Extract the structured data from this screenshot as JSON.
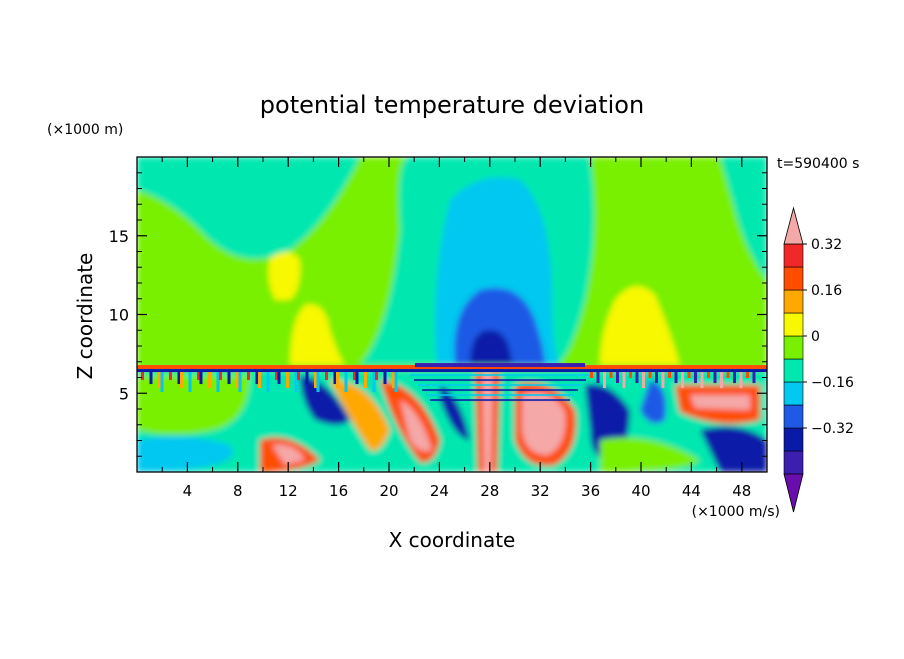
{
  "chart_data": {
    "type": "heatmap",
    "title": "potential temperature deviation",
    "xlabel": "X coordinate",
    "ylabel": "Z coordinate",
    "x_unit_label": "(×1000 m/s)",
    "y_unit_label": "(×1000 m)",
    "time_label": "t=590400 s",
    "xlim": [
      0,
      50
    ],
    "ylim": [
      0,
      20
    ],
    "x_ticks": [
      4,
      8,
      12,
      16,
      20,
      24,
      28,
      32,
      36,
      40,
      44,
      48
    ],
    "y_ticks": [
      5,
      10,
      15
    ],
    "colorbar": {
      "levels": [
        -0.48,
        -0.4,
        -0.32,
        -0.24,
        -0.16,
        -0.08,
        0,
        0.08,
        0.16,
        0.24,
        0.32,
        0.4
      ],
      "labels": [
        "0.32",
        "0.16",
        "0",
        "−0.16",
        "−0.32"
      ],
      "label_values": [
        0.32,
        0.16,
        0,
        -0.16,
        -0.32
      ],
      "colors": [
        "#6a0dad",
        "#3d1fb0",
        "#0a1aa8",
        "#1e5ae6",
        "#00c8f0",
        "#00e8b0",
        "#78f000",
        "#f8f800",
        "#ffa800",
        "#ff4d00",
        "#f02828",
        "#f4a8a8"
      ],
      "extend": "both"
    },
    "grid": false
  }
}
